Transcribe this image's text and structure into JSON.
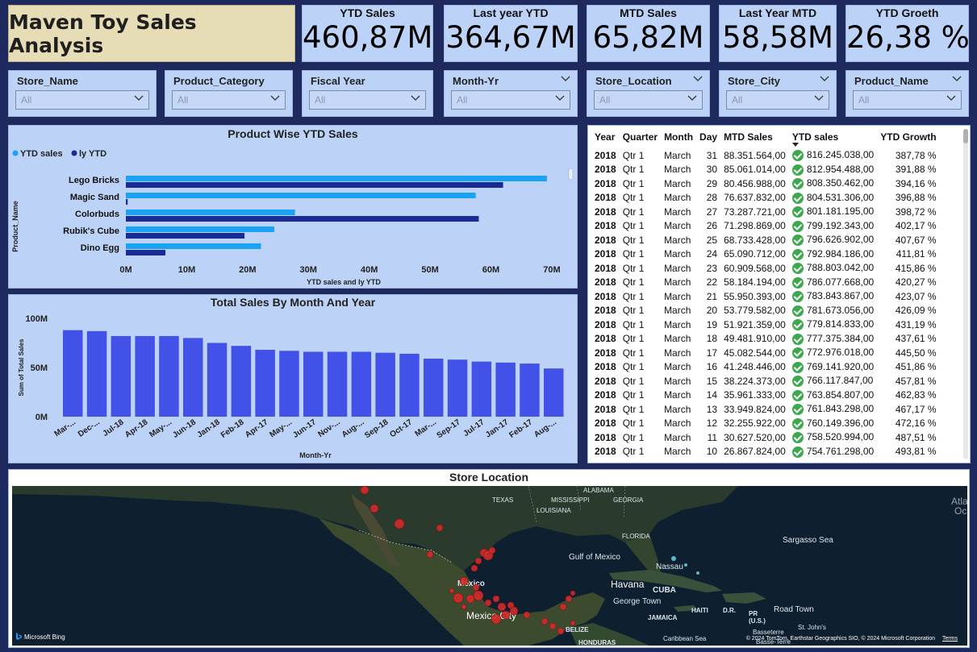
{
  "header": {
    "title": "Maven Toy Sales Analysis"
  },
  "kpis": [
    {
      "label": "YTD Sales",
      "value": "460,87M"
    },
    {
      "label": "Last year YTD",
      "value": "364,67M"
    },
    {
      "label": "MTD Sales",
      "value": "65,82M"
    },
    {
      "label": "Last Year MTD",
      "value": "58,58M"
    },
    {
      "label": "YTD Groeth",
      "value": "26,38 %"
    }
  ],
  "slicers": [
    {
      "label": "Store_Name",
      "value": "All"
    },
    {
      "label": "Product_Category",
      "value": "All"
    },
    {
      "label": "Fiscal Year",
      "value": "All"
    },
    {
      "label": "Month-Yr",
      "value": "All"
    },
    {
      "label": "Store_Location",
      "value": "All"
    },
    {
      "label": "Store_City",
      "value": "All"
    },
    {
      "label": "Product_Name",
      "value": "All"
    }
  ],
  "bar_chart": {
    "title": "Product Wise YTD Sales",
    "legend": [
      "YTD sales",
      "ly YTD"
    ],
    "ylabel": "Product_Name",
    "xlabel": "YTD sales and ly YTD",
    "ticks": [
      "0M",
      "10M",
      "20M",
      "30M",
      "40M",
      "50M",
      "60M",
      "70M"
    ]
  },
  "column_chart": {
    "title": "Total Sales By Month And Year",
    "ylabel": "Sum of Total Sales",
    "xlabel": "Month-Yr",
    "yticks": [
      "100M",
      "50M",
      "0M"
    ]
  },
  "chart_data": [
    {
      "type": "bar",
      "title": "Product Wise YTD Sales",
      "categories": [
        "Lego Bricks",
        "Magic Sand",
        "Colorbuds",
        "Rubik's Cube",
        "Dino Egg"
      ],
      "series": [
        {
          "name": "YTD sales",
          "values": [
            69.2,
            57.5,
            27.8,
            24.4,
            22.2
          ]
        },
        {
          "name": "ly YTD",
          "values": [
            62.0,
            0.3,
            58.0,
            19.5,
            6.5
          ]
        }
      ],
      "xlabel": "YTD sales and ly YTD",
      "ylabel": "Product_Name",
      "xlim": [
        0,
        72
      ],
      "colors": [
        "#1aa3f5",
        "#1a2b96"
      ]
    },
    {
      "type": "bar",
      "title": "Total Sales By Month And Year",
      "categories": [
        "Mar-...",
        "Dec-...",
        "Jul-18",
        "Apr-18",
        "May-...",
        "Jun-18",
        "Jan-18",
        "Feb-18",
        "Apr-17",
        "May-...",
        "Jun-17",
        "Nov-...",
        "Aug-...",
        "Sep-18",
        "Oct-17",
        "Mar-...",
        "Sep-17",
        "Jul-17",
        "Jan-17",
        "Feb-17",
        "Aug-..."
      ],
      "values": [
        88,
        87,
        82,
        82,
        82,
        80,
        75,
        72,
        68,
        67,
        66,
        66,
        66,
        65,
        64,
        59,
        58,
        56,
        55,
        54,
        49
      ],
      "xlabel": "Month-Yr",
      "ylabel": "Sum of Total Sales",
      "ylim": [
        0,
        100
      ],
      "colors": [
        "#4251e8"
      ]
    }
  ],
  "table": {
    "columns": [
      "Year",
      "Quarter",
      "Month",
      "Day",
      "MTD Sales",
      "YTD sales",
      "YTD Growth"
    ],
    "rows": [
      [
        "2018",
        "Qtr 1",
        "March",
        "31",
        "88.351.564,00",
        "816.245.038,00",
        "387,78 %"
      ],
      [
        "2018",
        "Qtr 1",
        "March",
        "30",
        "85.061.014,00",
        "812.954.488,00",
        "391,88 %"
      ],
      [
        "2018",
        "Qtr 1",
        "March",
        "29",
        "80.456.988,00",
        "808.350.462,00",
        "394,16 %"
      ],
      [
        "2018",
        "Qtr 1",
        "March",
        "28",
        "76.637.832,00",
        "804.531.306,00",
        "396,88 %"
      ],
      [
        "2018",
        "Qtr 1",
        "March",
        "27",
        "73.287.721,00",
        "801.181.195,00",
        "398,72 %"
      ],
      [
        "2018",
        "Qtr 1",
        "March",
        "26",
        "71.298.869,00",
        "799.192.343,00",
        "402,17 %"
      ],
      [
        "2018",
        "Qtr 1",
        "March",
        "25",
        "68.733.428,00",
        "796.626.902,00",
        "407,67 %"
      ],
      [
        "2018",
        "Qtr 1",
        "March",
        "24",
        "65.090.712,00",
        "792.984.186,00",
        "411,81 %"
      ],
      [
        "2018",
        "Qtr 1",
        "March",
        "23",
        "60.909.568,00",
        "788.803.042,00",
        "415,86 %"
      ],
      [
        "2018",
        "Qtr 1",
        "March",
        "22",
        "58.184.194,00",
        "786.077.668,00",
        "420,27 %"
      ],
      [
        "2018",
        "Qtr 1",
        "March",
        "21",
        "55.950.393,00",
        "783.843.867,00",
        "423,07 %"
      ],
      [
        "2018",
        "Qtr 1",
        "March",
        "20",
        "53.779.582,00",
        "781.673.056,00",
        "426,09 %"
      ],
      [
        "2018",
        "Qtr 1",
        "March",
        "19",
        "51.921.359,00",
        "779.814.833,00",
        "431,19 %"
      ],
      [
        "2018",
        "Qtr 1",
        "March",
        "18",
        "49.481.910,00",
        "777.375.384,00",
        "437,61 %"
      ],
      [
        "2018",
        "Qtr 1",
        "March",
        "17",
        "45.082.544,00",
        "772.976.018,00",
        "445,50 %"
      ],
      [
        "2018",
        "Qtr 1",
        "March",
        "16",
        "41.248.446,00",
        "769.141.920,00",
        "451,86 %"
      ],
      [
        "2018",
        "Qtr 1",
        "March",
        "15",
        "38.224.373,00",
        "766.117.847,00",
        "457,81 %"
      ],
      [
        "2018",
        "Qtr 1",
        "March",
        "14",
        "35.961.333,00",
        "763.854.807,00",
        "462,83 %"
      ],
      [
        "2018",
        "Qtr 1",
        "March",
        "13",
        "33.949.824,00",
        "761.843.298,00",
        "467,17 %"
      ],
      [
        "2018",
        "Qtr 1",
        "March",
        "12",
        "32.255.922,00",
        "760.149.396,00",
        "472,16 %"
      ],
      [
        "2018",
        "Qtr 1",
        "March",
        "11",
        "30.627.520,00",
        "758.520.994,00",
        "487,51 %"
      ],
      [
        "2018",
        "Qtr 1",
        "March",
        "10",
        "26.867.824,00",
        "754.761.298,00",
        "493,81 %"
      ]
    ],
    "status_icon": "check-circle-icon"
  },
  "map": {
    "title": "Store Location",
    "labels": [
      "ALABAMA",
      "MISSISSIPPI",
      "GEORGIA",
      "TEXAS",
      "LOUISIANA",
      "FLORIDA",
      "Gulf of Mexico",
      "Sargasso Sea",
      "Nassau",
      "Havana",
      "CUBA",
      "George Town",
      "JAMAICA",
      "HAITI",
      "D.R.",
      "PR (U.S.)",
      "Road Town",
      "St. John's",
      "Basseterre",
      "Basse-Terre",
      "BELIZE",
      "HONDURAS",
      "México",
      "Mexico City",
      "Atla",
      "Oc",
      "Caribbean Sea"
    ],
    "attribution": "© 2024 TomTom, Earthstar Geographics SIO, © 2024 Microsoft Corporation",
    "terms": "Terms",
    "brand": "Microsoft Bing"
  }
}
